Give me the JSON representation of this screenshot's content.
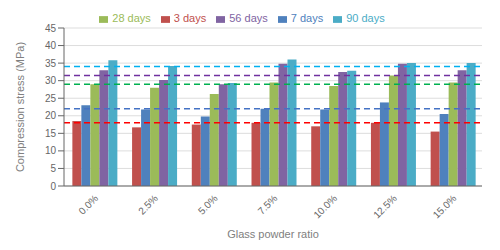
{
  "chart_data": {
    "type": "bar",
    "xlabel": "Glass powder ratio",
    "ylabel": "Compression stress (MPa)",
    "categories": [
      "0.0%",
      "2.5%",
      "5.0%",
      "7.5%",
      "10.0%",
      "12.5%",
      "15.0%"
    ],
    "series": [
      {
        "name": "3 days",
        "color": "#c0504d",
        "values": [
          18.5,
          16.7,
          17.5,
          18.0,
          17.0,
          18.0,
          15.5
        ],
        "hline": {
          "y": 18.0,
          "color": "#ff0000",
          "line_style": "dashed"
        }
      },
      {
        "name": "7 days",
        "color": "#4f81bd",
        "values": [
          23.0,
          21.8,
          19.8,
          22.0,
          21.8,
          23.8,
          20.5
        ],
        "hline": {
          "y": 22.0,
          "color": "#4472c4",
          "line_style": "dashed"
        }
      },
      {
        "name": "28 days",
        "color": "#9bbb59",
        "values": [
          29.0,
          28.0,
          26.2,
          29.5,
          28.5,
          31.5,
          29.5
        ],
        "hline": {
          "y": 29.0,
          "color": "#00b050",
          "line_style": "dashed"
        }
      },
      {
        "name": "56 days",
        "color": "#8064a2",
        "values": [
          33.0,
          30.2,
          29.0,
          34.8,
          32.5,
          34.8,
          33.0
        ],
        "hline": {
          "y": 31.5,
          "color": "#7030a0",
          "line_style": "dashed"
        }
      },
      {
        "name": "90 days",
        "color": "#4bacc6",
        "values": [
          35.8,
          34.2,
          29.3,
          36.0,
          32.8,
          35.0,
          35.0
        ],
        "hline": {
          "y": 34.0,
          "color": "#00b0f0",
          "line_style": "dashed"
        }
      }
    ],
    "ylim": [
      0,
      45
    ],
    "yticks": [
      0,
      5,
      10,
      15,
      20,
      25,
      30,
      35,
      40,
      45
    ],
    "grid": true,
    "legend": "top"
  }
}
